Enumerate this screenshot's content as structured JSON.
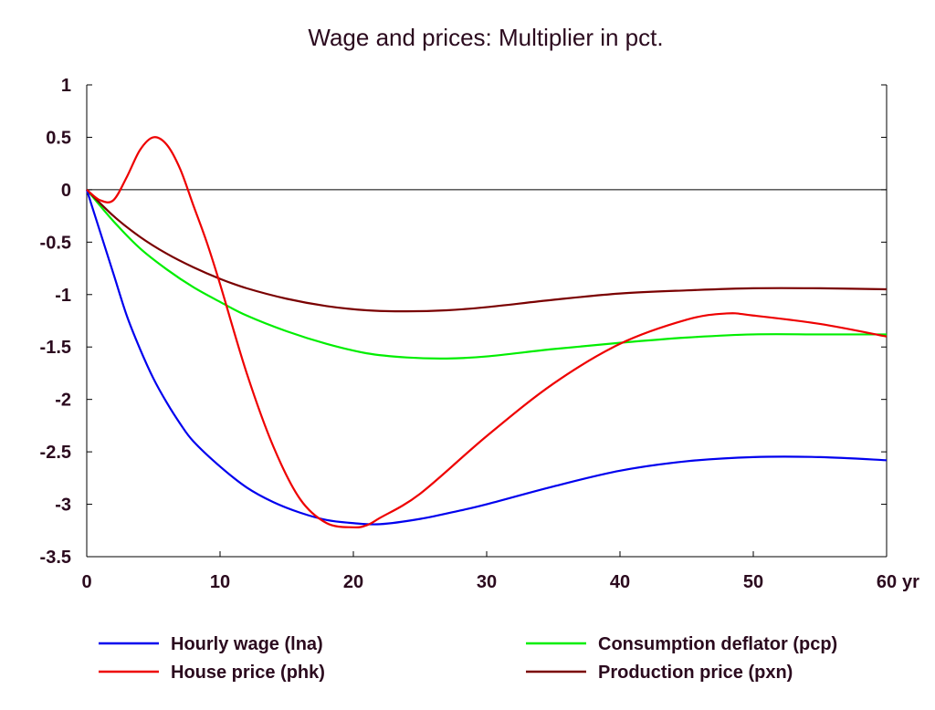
{
  "chart_data": {
    "type": "line",
    "title": "Wage and prices: Multiplier in pct.",
    "xlabel": "",
    "ylabel": "",
    "x_unit_label": "yr",
    "xlim": [
      0,
      60
    ],
    "ylim": [
      -3.5,
      1
    ],
    "x_ticks": [
      0,
      10,
      20,
      30,
      40,
      50,
      60
    ],
    "y_ticks": [
      1,
      0.5,
      0,
      -0.5,
      -1,
      -1.5,
      -2,
      -2.5,
      -3,
      -3.5
    ],
    "grid": false,
    "zero_line": true,
    "legend_position": "bottom",
    "series": [
      {
        "name": "Hourly wage (lna)",
        "color": "#0000ee",
        "x": [
          0,
          1,
          2,
          3,
          4,
          5,
          6,
          7,
          8,
          10,
          12,
          14,
          16,
          18,
          20,
          22,
          25,
          28,
          30,
          35,
          40,
          45,
          50,
          55,
          60
        ],
        "y": [
          0,
          -0.4,
          -0.8,
          -1.2,
          -1.52,
          -1.8,
          -2.03,
          -2.23,
          -2.4,
          -2.64,
          -2.84,
          -2.98,
          -3.08,
          -3.15,
          -3.18,
          -3.19,
          -3.14,
          -3.06,
          -3.0,
          -2.83,
          -2.68,
          -2.59,
          -2.55,
          -2.55,
          -2.58
        ]
      },
      {
        "name": "House price (phk)",
        "color": "#ee0000",
        "x": [
          0,
          1,
          2,
          3,
          4,
          5,
          6,
          7,
          8,
          9,
          10,
          12,
          14,
          16,
          18,
          20,
          21,
          22,
          25,
          30,
          35,
          40,
          45,
          48,
          50,
          55,
          60
        ],
        "y": [
          0,
          -0.1,
          -0.1,
          0.12,
          0.38,
          0.5,
          0.43,
          0.2,
          -0.15,
          -0.5,
          -0.9,
          -1.75,
          -2.45,
          -2.95,
          -3.18,
          -3.22,
          -3.2,
          -3.13,
          -2.9,
          -2.35,
          -1.85,
          -1.47,
          -1.24,
          -1.18,
          -1.2,
          -1.28,
          -1.4
        ]
      },
      {
        "name": "Consumption deflator (pcp)",
        "color": "#00ee00",
        "x": [
          0,
          2,
          4,
          6,
          8,
          10,
          12,
          15,
          18,
          21,
          24,
          27,
          30,
          35,
          40,
          45,
          50,
          55,
          60
        ],
        "y": [
          0,
          -0.3,
          -0.56,
          -0.76,
          -0.93,
          -1.07,
          -1.2,
          -1.35,
          -1.47,
          -1.56,
          -1.6,
          -1.61,
          -1.59,
          -1.52,
          -1.46,
          -1.41,
          -1.38,
          -1.38,
          -1.38
        ]
      },
      {
        "name": "Production price (pxn)",
        "color": "#7a0000",
        "x": [
          0,
          2,
          4,
          6,
          8,
          10,
          12,
          15,
          18,
          21,
          24,
          27,
          30,
          35,
          40,
          45,
          50,
          55,
          60
        ],
        "y": [
          0,
          -0.25,
          -0.45,
          -0.61,
          -0.74,
          -0.85,
          -0.94,
          -1.04,
          -1.11,
          -1.15,
          -1.16,
          -1.15,
          -1.12,
          -1.05,
          -0.99,
          -0.96,
          -0.94,
          -0.94,
          -0.95
        ]
      }
    ]
  }
}
